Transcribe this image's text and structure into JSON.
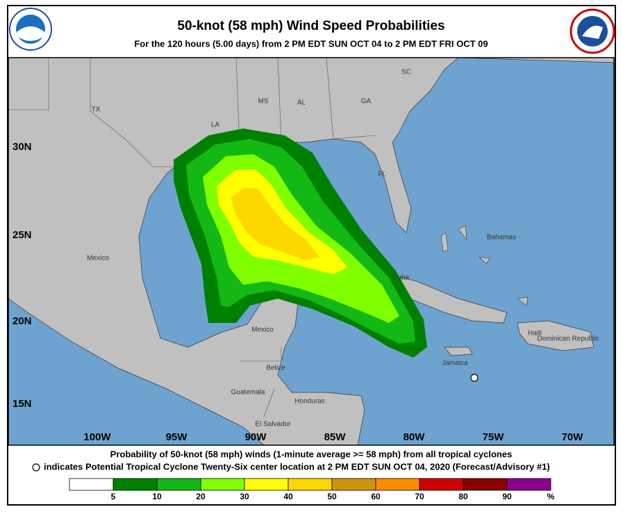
{
  "header": {
    "title": "50-knot (58 mph) Wind Speed Probabilities",
    "subtitle": "For the 120 hours (5.00 days) from 2 PM EDT SUN OCT 04 to 2 PM EDT FRI OCT 09"
  },
  "map": {
    "lat_labels": [
      "30N",
      "25N",
      "20N",
      "15N"
    ],
    "lon_labels": [
      "100W",
      "95W",
      "90W",
      "85W",
      "80W",
      "75W",
      "70W"
    ],
    "places": [
      "TX",
      "LA",
      "MS",
      "AL",
      "GA",
      "SC",
      "FL",
      "Mexico",
      "Bahamas",
      "Cuba",
      "Haiti",
      "Dominican Republic",
      "Jamaica",
      "Mexico",
      "Belize",
      "Guatemala",
      "Honduras",
      "El Salvador"
    ]
  },
  "footer": {
    "line1": "Probability of 50-knot (58 mph) winds (1-minute average >= 58 mph) from all tropical cyclones",
    "line2": "indicates Potential Tropical Cyclone Twenty-Six center location at 2 PM EDT SUN OCT 04, 2020 (Forecast/Advisory #1)"
  },
  "legend": {
    "colors": [
      "#ffffff",
      "#008000",
      "#14b814",
      "#80ff00",
      "#ffff00",
      "#ffd700",
      "#cd950c",
      "#ff8c00",
      "#cd0000",
      "#8b0000",
      "#8b008b"
    ],
    "levels": [
      5,
      10,
      20,
      30,
      40,
      50,
      60,
      70,
      80,
      90
    ],
    "unit": "%"
  }
}
